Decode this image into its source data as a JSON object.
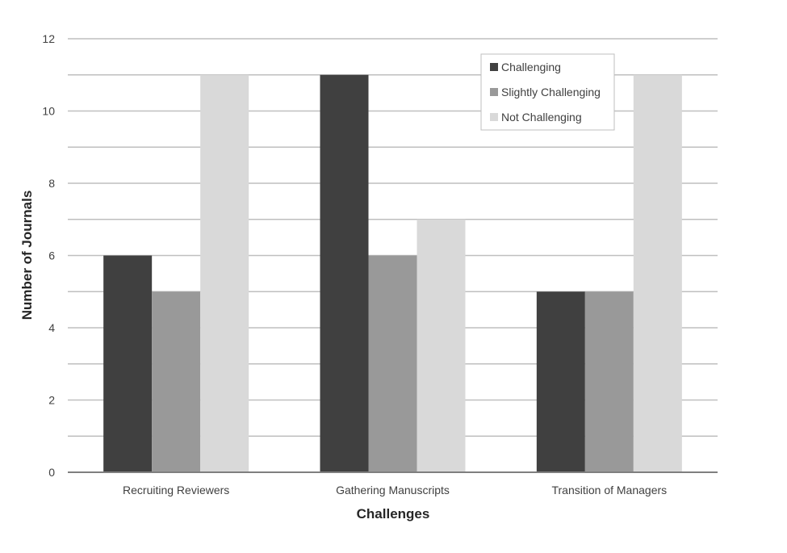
{
  "chart_data": {
    "type": "bar",
    "title": "",
    "xlabel": "Challenges",
    "ylabel": "Number of Journals",
    "categories": [
      "Recruiting Reviewers",
      "Gathering Manuscripts",
      "Transition of Managers"
    ],
    "series": [
      {
        "name": "Challenging",
        "values": [
          6,
          11,
          5
        ],
        "color": "#404040"
      },
      {
        "name": "Slightly Challenging",
        "values": [
          5,
          6,
          5
        ],
        "color": "#999999"
      },
      {
        "name": "Not Challenging",
        "values": [
          11,
          7,
          11
        ],
        "color": "#d9d9d9"
      }
    ],
    "ylim": [
      0,
      12
    ],
    "yticks": [
      0,
      2,
      4,
      6,
      8,
      10,
      12
    ],
    "grid": true,
    "legend_position": "top-right"
  }
}
